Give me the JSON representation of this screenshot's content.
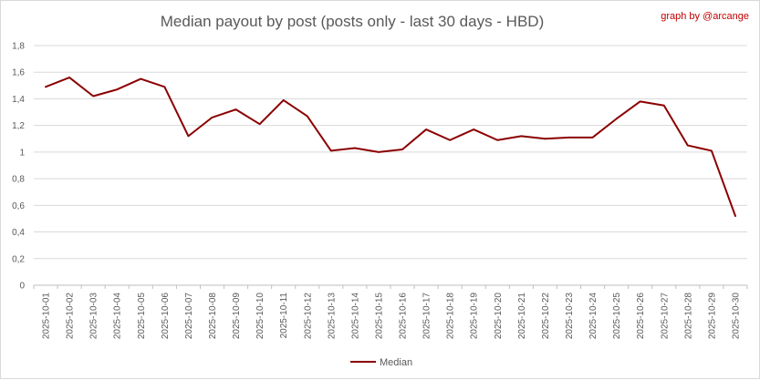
{
  "chart_data": {
    "type": "line",
    "title": "Median payout by post (posts only - last 30 days - HBD)",
    "credit": "graph by @arcange",
    "ylim": [
      0,
      1.8
    ],
    "y_ticks": [
      "0",
      "0,2",
      "0,4",
      "0,6",
      "0,8",
      "1",
      "1,2",
      "1,4",
      "1,6",
      "1,8"
    ],
    "grid": "horizontal",
    "legend_position": "bottom",
    "categories": [
      "2025-10-01",
      "2025-10-02",
      "2025-10-03",
      "2025-10-04",
      "2025-10-05",
      "2025-10-06",
      "2025-10-07",
      "2025-10-08",
      "2025-10-09",
      "2025-10-10",
      "2025-10-11",
      "2025-10-12",
      "2025-10-13",
      "2025-10-14",
      "2025-10-15",
      "2025-10-16",
      "2025-10-17",
      "2025-10-18",
      "2025-10-19",
      "2025-10-20",
      "2025-10-21",
      "2025-10-22",
      "2025-10-23",
      "2025-10-24",
      "2025-10-25",
      "2025-10-26",
      "2025-10-27",
      "2025-10-28",
      "2025-10-29",
      "2025-10-30"
    ],
    "series": [
      {
        "name": "Median",
        "color": "#8b0000",
        "values": [
          1.49,
          1.56,
          1.42,
          1.47,
          1.55,
          1.49,
          1.12,
          1.26,
          1.32,
          1.21,
          1.39,
          1.27,
          1.01,
          1.03,
          1.0,
          1.02,
          1.17,
          1.09,
          1.17,
          1.09,
          1.12,
          1.1,
          1.11,
          1.11,
          1.25,
          1.38,
          1.35,
          1.05,
          1.01,
          0.52
        ]
      }
    ]
  }
}
